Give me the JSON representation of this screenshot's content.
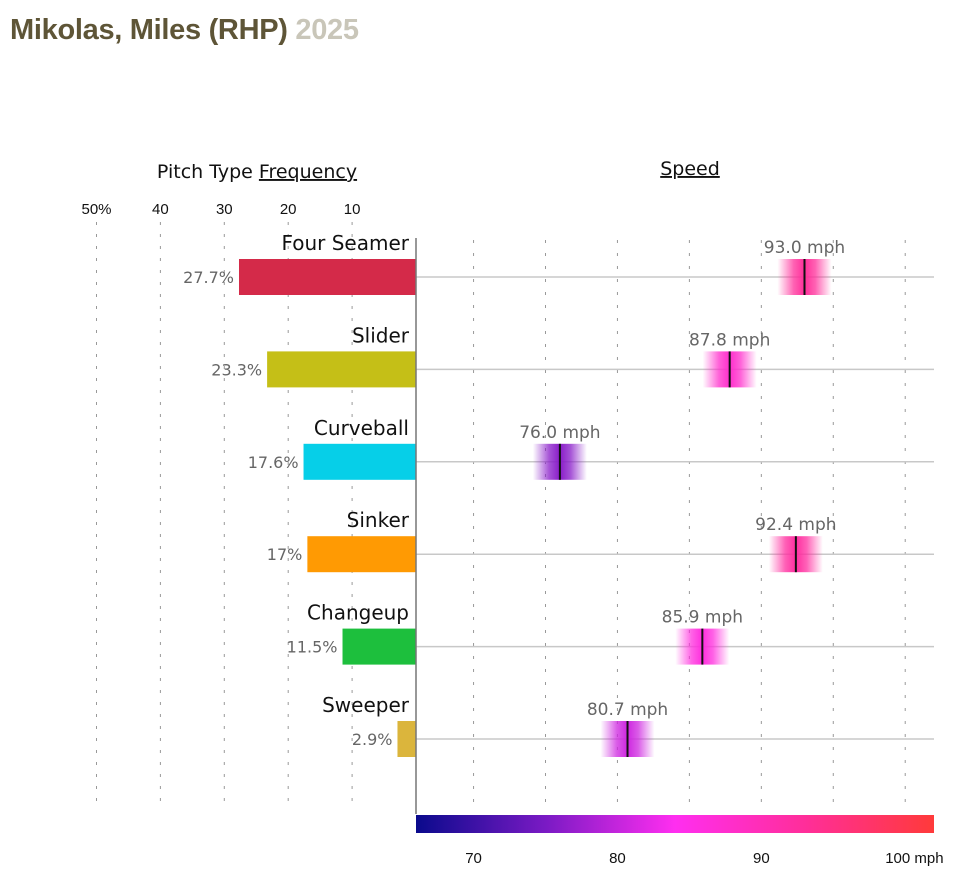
{
  "header": {
    "player": "Mikolas, Miles (RHP)",
    "year": "2025"
  },
  "chart_data": {
    "type": "bar",
    "frequency_panel": {
      "title_prefix": "Pitch Type",
      "title_underlined": "Frequency",
      "axis_ticks": [
        "50%",
        "40",
        "30",
        "20",
        "10"
      ],
      "tick_values": [
        50,
        40,
        30,
        20,
        10
      ],
      "xlim": [
        0,
        50
      ]
    },
    "speed_panel": {
      "title": "Speed",
      "axis_ticks": [
        "70",
        "80",
        "90",
        "100 mph"
      ],
      "tick_values": [
        70,
        80,
        90,
        100
      ],
      "gridline_values": [
        70,
        75,
        80,
        85,
        90,
        95,
        100
      ],
      "xlim": [
        66,
        102
      ],
      "colorscale": [
        {
          "value": 66,
          "color": "#0a0a8c"
        },
        {
          "value": 75,
          "color": "#7a1ac4"
        },
        {
          "value": 84,
          "color": "#ff2ef0"
        },
        {
          "value": 93,
          "color": "#ff2e9a"
        },
        {
          "value": 102,
          "color": "#ff3a3a"
        }
      ]
    },
    "pitches": [
      {
        "name": "Four Seamer",
        "frequency": 27.7,
        "frequency_label": "27.7%",
        "color": "#d42a49",
        "speed": 93.0,
        "speed_label": "93.0 mph"
      },
      {
        "name": "Slider",
        "frequency": 23.3,
        "frequency_label": "23.3%",
        "color": "#c5bf17",
        "speed": 87.8,
        "speed_label": "87.8 mph"
      },
      {
        "name": "Curveball",
        "frequency": 17.6,
        "frequency_label": "17.6%",
        "color": "#06cfe8",
        "speed": 76.0,
        "speed_label": "76.0 mph"
      },
      {
        "name": "Sinker",
        "frequency": 17.0,
        "frequency_label": "17%",
        "color": "#ff9a03",
        "speed": 92.4,
        "speed_label": "92.4 mph"
      },
      {
        "name": "Changeup",
        "frequency": 11.5,
        "frequency_label": "11.5%",
        "color": "#1dbf3d",
        "speed": 85.9,
        "speed_label": "85.9 mph"
      },
      {
        "name": "Sweeper",
        "frequency": 2.9,
        "frequency_label": "2.9%",
        "color": "#dbb53c",
        "speed": 80.7,
        "speed_label": "80.7 mph"
      }
    ]
  }
}
